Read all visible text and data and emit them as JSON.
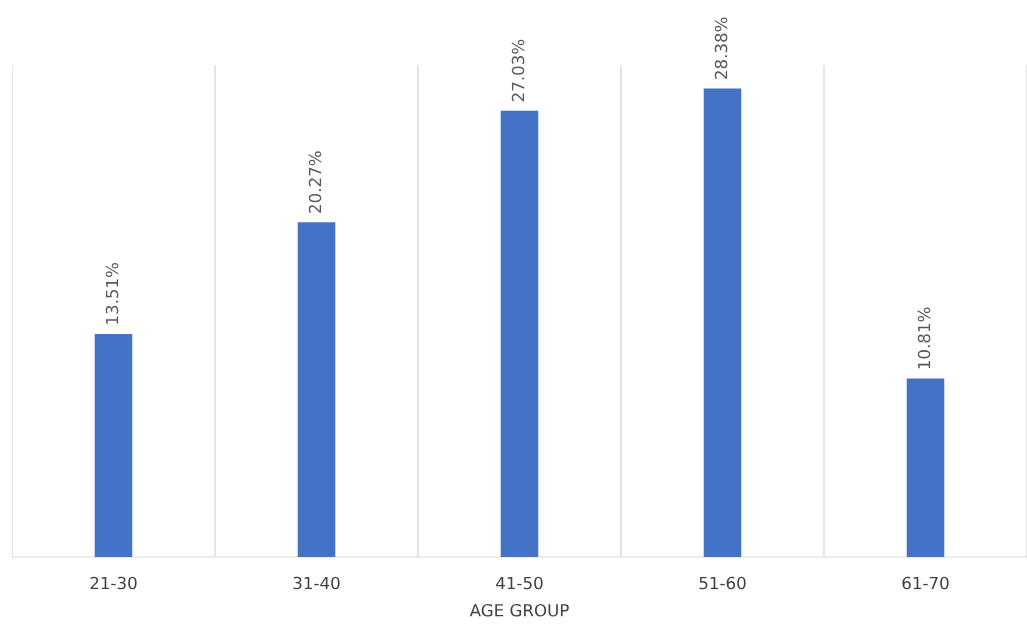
{
  "chart_data": {
    "type": "bar",
    "xlabel": "AGE GROUP",
    "categories": [
      "21-30",
      "31-40",
      "41-50",
      "51-60",
      "61-70"
    ],
    "values": [
      13.51,
      20.27,
      27.03,
      28.38,
      10.81
    ],
    "value_labels": [
      "13.51%",
      "20.27%",
      "27.03%",
      "28.38%",
      "10.81%"
    ],
    "color": "#4472c4",
    "grid": "x",
    "legend": false
  }
}
